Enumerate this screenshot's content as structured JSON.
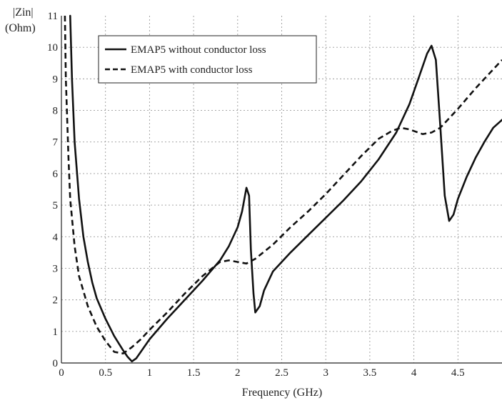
{
  "chart_data": {
    "type": "line",
    "title": "",
    "xlabel": "Frequency (GHz)",
    "ylabel_lines": [
      "|Zin|",
      "(Ohm)"
    ],
    "xlim": [
      0,
      5
    ],
    "ylim": [
      0,
      11
    ],
    "x_ticks": [
      0,
      0.5,
      1,
      1.5,
      2,
      2.5,
      3,
      3.5,
      4,
      4.5
    ],
    "x_tick_labels": [
      "0",
      "0.5",
      "1",
      "1.5",
      "2",
      "2.5",
      "3",
      "3.5",
      "4",
      "4.5"
    ],
    "y_ticks": [
      0,
      1,
      2,
      3,
      4,
      5,
      6,
      7,
      8,
      9,
      10,
      11
    ],
    "y_tick_labels": [
      "0",
      "1",
      "2",
      "3",
      "4",
      "5",
      "6",
      "7",
      "8",
      "9",
      "10",
      "11"
    ],
    "grid": true,
    "legend_position": "top-left",
    "series": [
      {
        "name": "EMAP5 without conductor loss",
        "style": "solid",
        "color": "#111111",
        "points": [
          [
            0.1,
            11
          ],
          [
            0.12,
            9.0
          ],
          [
            0.15,
            7.0
          ],
          [
            0.2,
            5.2
          ],
          [
            0.25,
            4.0
          ],
          [
            0.3,
            3.2
          ],
          [
            0.35,
            2.55
          ],
          [
            0.4,
            2.05
          ],
          [
            0.5,
            1.4
          ],
          [
            0.6,
            0.85
          ],
          [
            0.7,
            0.4
          ],
          [
            0.75,
            0.2
          ],
          [
            0.8,
            0.05
          ],
          [
            0.85,
            0.15
          ],
          [
            0.9,
            0.35
          ],
          [
            1.0,
            0.75
          ],
          [
            1.2,
            1.4
          ],
          [
            1.4,
            2.0
          ],
          [
            1.6,
            2.6
          ],
          [
            1.8,
            3.25
          ],
          [
            1.9,
            3.7
          ],
          [
            2.0,
            4.3
          ],
          [
            2.05,
            4.8
          ],
          [
            2.1,
            5.55
          ],
          [
            2.13,
            5.3
          ],
          [
            2.15,
            3.6
          ],
          [
            2.18,
            2.2
          ],
          [
            2.2,
            1.6
          ],
          [
            2.25,
            1.8
          ],
          [
            2.3,
            2.3
          ],
          [
            2.4,
            2.9
          ],
          [
            2.6,
            3.5
          ],
          [
            2.8,
            4.05
          ],
          [
            3.0,
            4.6
          ],
          [
            3.2,
            5.15
          ],
          [
            3.4,
            5.75
          ],
          [
            3.6,
            6.45
          ],
          [
            3.8,
            7.3
          ],
          [
            3.95,
            8.2
          ],
          [
            4.05,
            9.0
          ],
          [
            4.15,
            9.8
          ],
          [
            4.2,
            10.05
          ],
          [
            4.25,
            9.6
          ],
          [
            4.3,
            7.5
          ],
          [
            4.35,
            5.3
          ],
          [
            4.4,
            4.5
          ],
          [
            4.45,
            4.7
          ],
          [
            4.5,
            5.2
          ],
          [
            4.6,
            5.9
          ],
          [
            4.7,
            6.5
          ],
          [
            4.8,
            7.0
          ],
          [
            4.9,
            7.45
          ],
          [
            5.0,
            7.7
          ]
        ]
      },
      {
        "name": "EMAP5 with conductor loss",
        "style": "dashed",
        "color": "#111111",
        "points": [
          [
            0.04,
            11
          ],
          [
            0.05,
            9.0
          ],
          [
            0.08,
            6.5
          ],
          [
            0.1,
            5.2
          ],
          [
            0.15,
            3.7
          ],
          [
            0.2,
            2.75
          ],
          [
            0.3,
            1.8
          ],
          [
            0.4,
            1.15
          ],
          [
            0.5,
            0.7
          ],
          [
            0.6,
            0.35
          ],
          [
            0.7,
            0.3
          ],
          [
            0.8,
            0.5
          ],
          [
            0.9,
            0.75
          ],
          [
            1.0,
            1.05
          ],
          [
            1.2,
            1.6
          ],
          [
            1.4,
            2.2
          ],
          [
            1.6,
            2.75
          ],
          [
            1.8,
            3.2
          ],
          [
            1.9,
            3.25
          ],
          [
            2.0,
            3.2
          ],
          [
            2.1,
            3.15
          ],
          [
            2.2,
            3.3
          ],
          [
            2.4,
            3.75
          ],
          [
            2.6,
            4.3
          ],
          [
            2.8,
            4.8
          ],
          [
            3.0,
            5.35
          ],
          [
            3.2,
            5.95
          ],
          [
            3.4,
            6.55
          ],
          [
            3.6,
            7.1
          ],
          [
            3.75,
            7.35
          ],
          [
            3.85,
            7.45
          ],
          [
            3.95,
            7.4
          ],
          [
            4.1,
            7.25
          ],
          [
            4.2,
            7.3
          ],
          [
            4.3,
            7.45
          ],
          [
            4.5,
            8.05
          ],
          [
            4.7,
            8.7
          ],
          [
            4.9,
            9.3
          ],
          [
            5.0,
            9.6
          ]
        ]
      }
    ]
  }
}
